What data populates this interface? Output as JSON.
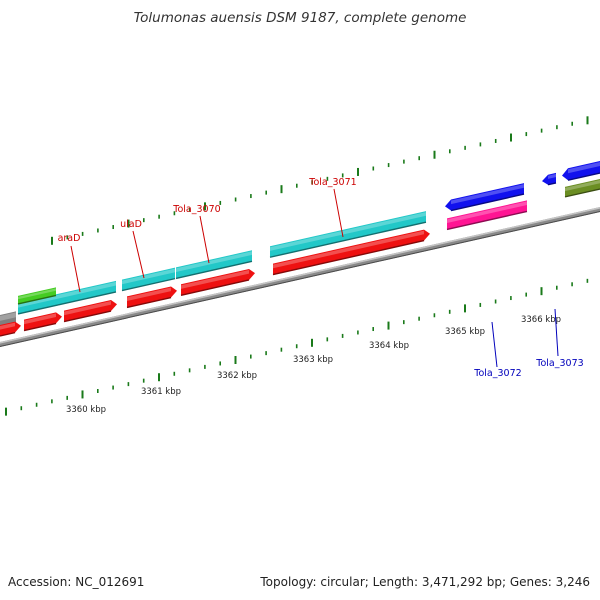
{
  "title": "Tolumonas auensis DSM 9187, complete genome",
  "footer": {
    "accession": "Accession: NC_012691",
    "summary": "Topology: circular; Length: 3,471,292 bp; Genes: 3,246"
  },
  "scale_labels": [
    "3360 kbp",
    "3361 kbp",
    "3362 kbp",
    "3363 kbp",
    "3364 kbp",
    "3365 kbp",
    "3366 kbp"
  ],
  "colors": {
    "forward_label": "#cc0000",
    "reverse_label": "#0000bb",
    "backbone": "#8a8a8a",
    "ticks": "#1a7a1a",
    "cyan": "#22c8c8",
    "red": "#ee1111",
    "blue": "#1111ee",
    "magenta": "#ff1493",
    "green": "#44cc22",
    "olive": "#6b8e23",
    "gray": "#808080"
  },
  "gene_labels": [
    {
      "name": "araD",
      "strand": "forward"
    },
    {
      "name": "ulaD",
      "strand": "forward"
    },
    {
      "name": "Tola_3070",
      "strand": "forward"
    },
    {
      "name": "Tola_3071",
      "strand": "forward"
    },
    {
      "name": "Tola_3072",
      "strand": "reverse"
    },
    {
      "name": "Tola_3073",
      "strand": "reverse"
    }
  ]
}
